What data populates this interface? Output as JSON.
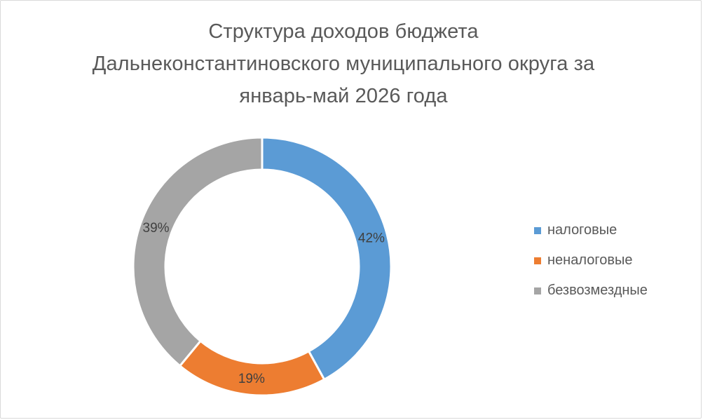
{
  "chart_data": {
    "type": "pie",
    "title_lines": [
      "Структура доходов бюджета",
      "Дальнеконстантиновского муниципального округа за",
      "январь-май 2026 года"
    ],
    "categories": [
      "налоговые",
      "неналоговые",
      "безвозмездные"
    ],
    "values": [
      42,
      19,
      39
    ],
    "data_labels": [
      "42%",
      "19%",
      "39%"
    ],
    "colors": [
      "#5b9bd5",
      "#ed7d31",
      "#a5a5a5"
    ],
    "legend_position": "right"
  }
}
